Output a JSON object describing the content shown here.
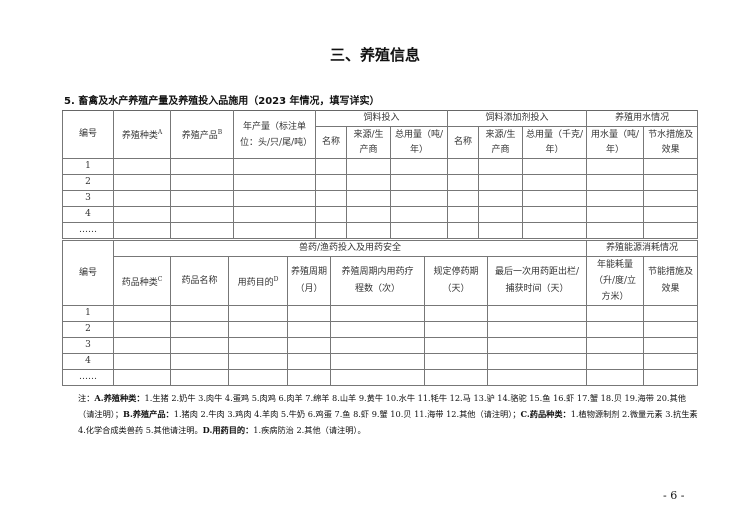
{
  "section_title": "三、养殖信息",
  "subtitle": "5. 畜禽及水产养殖产量及养殖投入品施用（2023 年情况，填写详实）",
  "table1": {
    "headers": {
      "id": "编号",
      "species": "养殖种类",
      "species_sup": "A",
      "product": "养殖产品",
      "product_sup": "B",
      "annual_output": "年产量（标注单位：头/只/尾/吨）",
      "feed_group": "饲料投入",
      "feed_name": "名称",
      "feed_source": "来源/生产商",
      "feed_total": "总用量（吨/年）",
      "additive_group": "饲料添加剂投入",
      "additive_name": "名称",
      "additive_source": "来源/生产商",
      "additive_total": "总用量（千克/年）",
      "water_group": "养殖用水情况",
      "water_amount": "用水量（吨/年）",
      "water_saving": "节水措施及效果"
    },
    "rows": [
      "1",
      "2",
      "3",
      "4",
      "……"
    ]
  },
  "table2": {
    "headers": {
      "id": "编号",
      "drug_group": "兽药/渔药投入及用药安全",
      "drug_type": "药品种类",
      "drug_type_sup": "C",
      "drug_name": "药品名称",
      "purpose": "用药目的",
      "purpose_sup": "D",
      "cycle": "养殖周期（月）",
      "courses": "养殖周期内用药疗程数（次）",
      "withdrawal": "规定停药期（天）",
      "last_use": "最后一次用药距出栏/捕获时间（天）",
      "energy_group": "养殖能源消耗情况",
      "energy_amount": "年能耗量（升/度/立方米）",
      "energy_saving": "节能措施及效果"
    },
    "rows": [
      "1",
      "2",
      "3",
      "4",
      "……"
    ]
  },
  "notes": {
    "prefix": "注：",
    "a_label": "A.养殖种类：",
    "a_text": "1.生猪 2.奶牛 3.肉牛 4.蛋鸡 5.肉鸡 6.肉羊 7.绵羊 8.山羊 9.黄牛 10.水牛 11.牦牛 12.马 13.驴 14.骆驼 15.鱼 16.虾 17.蟹 18.贝 19.海带 20.其他（请注明）；",
    "b_label": "B.养殖产品：",
    "b_text": "1.猪肉 2.牛肉 3.鸡肉 4.羊肉 5.牛奶 6.鸡蛋 7.鱼 8.虾 9.蟹 10.贝 11.海带 12.其他（请注明）；",
    "c_label": "C.药品种类：",
    "c_text": "1.植物源制剂 2.微量元素 3.抗生素 4.化学合成类兽药 5.其他请注明。",
    "d_label": "D.用药目的：",
    "d_text": "1.疾病防治 2.其他（请注明）。"
  },
  "page_number": "- 6 -"
}
